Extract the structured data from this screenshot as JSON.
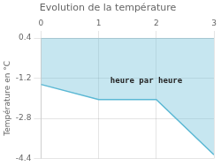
{
  "chart_data": {
    "type": "line",
    "title": "Evolution de la température",
    "ylabel": "Température en °C",
    "x": [
      0,
      1,
      2,
      3
    ],
    "values": [
      -1.45,
      -2.05,
      -2.05,
      -4.25
    ],
    "color": "#5bb8d4",
    "xlim": [
      0,
      3
    ],
    "ylim": [
      -4.4,
      0.4
    ],
    "xticks": [
      0,
      1,
      2,
      3
    ],
    "yticks": [
      0.4,
      -1.2,
      -2.8,
      -4.4
    ],
    "grid": true,
    "annotations": [
      {
        "text": "heure par heure",
        "x": 2.45,
        "y": -1.15
      }
    ]
  }
}
